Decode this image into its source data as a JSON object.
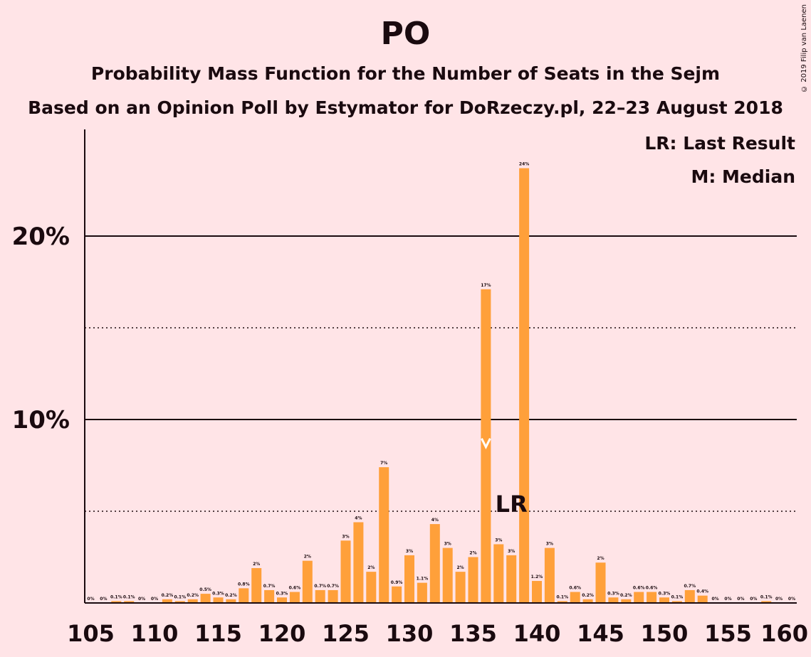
{
  "title": "PO",
  "subtitle": "Probability Mass Function for the Number of Seats in the Sejm",
  "subtitle2": "Based on an Opinion Poll by Estymator for DoRzeczy.pl, 22–23 August 2018",
  "copyright": "© 2019 Filip van Laenen",
  "legend": {
    "last_result": "LR: Last Result",
    "median": "M: Median"
  },
  "colors": {
    "background": "#ffe4e7",
    "bar": "#ffa03a",
    "text": "#1a0a0f"
  },
  "chart_data": {
    "type": "bar",
    "x": [
      105,
      106,
      107,
      108,
      109,
      110,
      111,
      112,
      113,
      114,
      115,
      116,
      117,
      118,
      119,
      120,
      121,
      122,
      123,
      124,
      125,
      126,
      127,
      128,
      129,
      130,
      131,
      132,
      133,
      134,
      135,
      136,
      137,
      138,
      139,
      140,
      141,
      142,
      143,
      144,
      145,
      146,
      147,
      148,
      149,
      150,
      151,
      152,
      153,
      154,
      155,
      156,
      157,
      158,
      159,
      160
    ],
    "values": [
      0,
      0,
      0.1,
      0.1,
      0,
      0,
      0.2,
      0.1,
      0.2,
      0.5,
      0.3,
      0.2,
      0.8,
      1.9,
      0.7,
      0.3,
      0.6,
      2.3,
      0.7,
      0.7,
      3.4,
      4.4,
      1.7,
      7.4,
      0.9,
      2.6,
      1.1,
      4.3,
      3.0,
      1.7,
      2.5,
      17.1,
      3.2,
      2.6,
      23.7,
      1.2,
      3.0,
      0.1,
      0.6,
      0.2,
      2.2,
      0.3,
      0.2,
      0.6,
      0.6,
      0.3,
      0.1,
      0.7,
      0.4,
      0,
      0,
      0,
      0,
      0.1,
      0,
      0
    ],
    "labels": [
      "0%",
      "0%",
      "0.1%",
      "0.1%",
      "0%",
      "0%",
      "0.2%",
      "0.1%",
      "0.2%",
      "0.5%",
      "0.3%",
      "0.2%",
      "0.8%",
      "2%",
      "0.7%",
      "0.3%",
      "0.6%",
      "2%",
      "0.7%",
      "0.7%",
      "3%",
      "4%",
      "2%",
      "7%",
      "0.9%",
      "3%",
      "1.1%",
      "4%",
      "3%",
      "2%",
      "2%",
      "17%",
      "3%",
      "3%",
      "24%",
      "1.2%",
      "3%",
      "0.1%",
      "0.6%",
      "0.2%",
      "2%",
      "0.3%",
      "0.2%",
      "0.6%",
      "0.6%",
      "0.3%",
      "0.1%",
      "0.7%",
      "0.4%",
      "0%",
      "0%",
      "0%",
      "0%",
      "0.1%",
      "0%",
      "0%"
    ],
    "xticks": [
      "105",
      "110",
      "115",
      "120",
      "125",
      "130",
      "135",
      "140",
      "145",
      "150",
      "155",
      "160"
    ],
    "yticks": [
      "10%",
      "20%"
    ],
    "ylim": [
      0,
      26
    ],
    "solid_gridlines": [
      10,
      20
    ],
    "dotted_gridlines": [
      5,
      15
    ],
    "median_seat": 136,
    "median_marker_value": 8.5,
    "last_result_seat": 138,
    "last_result_label": "LR"
  }
}
